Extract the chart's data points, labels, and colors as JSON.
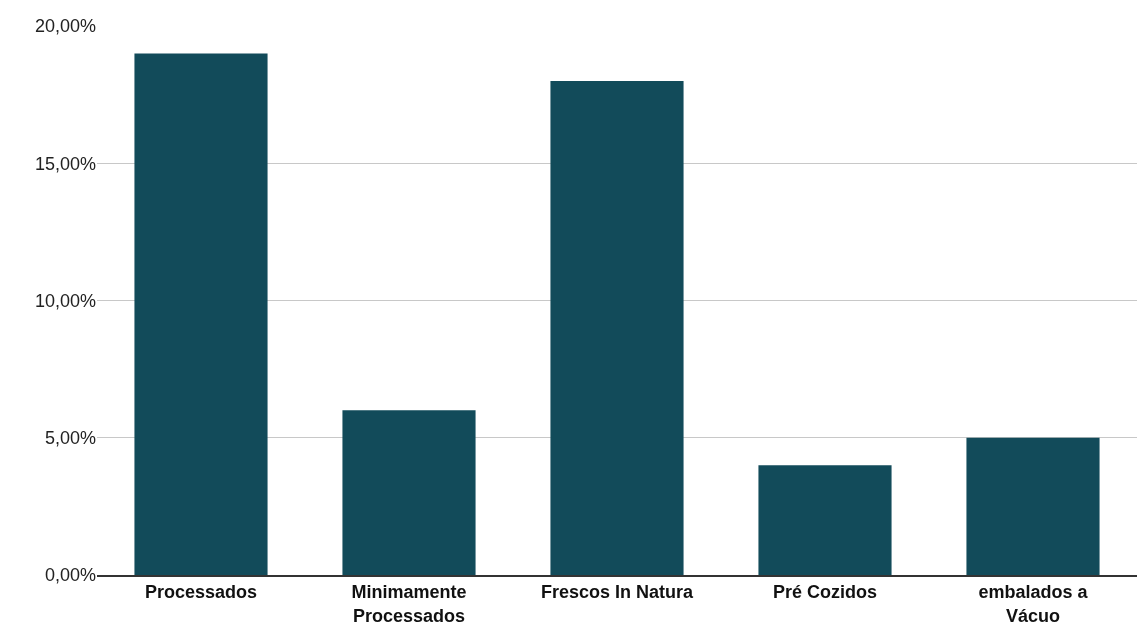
{
  "chart_data": {
    "type": "bar",
    "categories": [
      "Processados",
      "Minimamente\nProcessados",
      "Frescos In Natura",
      "Pré Cozidos",
      "embalados a\nVácuo"
    ],
    "values": [
      19,
      6,
      18,
      4,
      5
    ],
    "color": "#124b5a",
    "ylim": [
      0,
      20
    ],
    "yticks": [
      {
        "value": 0,
        "label": "0,00%"
      },
      {
        "value": 5,
        "label": "5,00%"
      },
      {
        "value": 10,
        "label": "10,00%"
      },
      {
        "value": 15,
        "label": "15,00%"
      },
      {
        "value": 20,
        "label": "20,00%"
      }
    ],
    "grid": "y"
  }
}
